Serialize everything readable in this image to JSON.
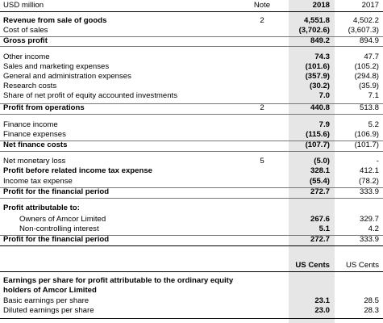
{
  "header": {
    "unit": "USD million",
    "note": "Note",
    "y2018": "2018",
    "y2017": "2017"
  },
  "sections": {
    "gross": [
      {
        "label": "Revenue from sale of goods",
        "note": "2",
        "v2018": "4,551.8",
        "v2017": "4,502.2",
        "bold": true
      },
      {
        "label": "Cost of sales",
        "note": "",
        "v2018": "(3,702.6)",
        "v2017": "(3,607.3)",
        "bold": false
      },
      {
        "label": "Gross profit",
        "note": "",
        "v2018": "849.2",
        "v2017": "894.9",
        "bold": true
      }
    ],
    "operations": [
      {
        "label": "Other income",
        "note": "",
        "v2018": "74.3",
        "v2017": "47.7"
      },
      {
        "label": "Sales and marketing expenses",
        "note": "",
        "v2018": "(101.6)",
        "v2017": "(105.2)"
      },
      {
        "label": "General and administration expenses",
        "note": "",
        "v2018": "(357.9)",
        "v2017": "(294.8)"
      },
      {
        "label": "Research costs",
        "note": "",
        "v2018": "(30.2)",
        "v2017": "(35.9)"
      },
      {
        "label": "Share of net profit of equity accounted investments",
        "note": "",
        "v2018": "7.0",
        "v2017": "7.1"
      },
      {
        "label": "Profit from operations",
        "note": "2",
        "v2018": "440.8",
        "v2017": "513.8",
        "bold": true
      }
    ],
    "finance": [
      {
        "label": "Finance income",
        "note": "",
        "v2018": "7.9",
        "v2017": "5.2"
      },
      {
        "label": "Finance expenses",
        "note": "",
        "v2018": "(115.6)",
        "v2017": "(106.9)"
      },
      {
        "label": "Net finance costs",
        "note": "",
        "v2018": "(107.7)",
        "v2017": "(101.7)",
        "bold": true
      }
    ],
    "tax": [
      {
        "label": "Net monetary loss",
        "note": "5",
        "v2018": "(5.0)",
        "v2017": "-"
      },
      {
        "label": "Profit before related income tax expense",
        "note": "",
        "v2018": "328.1",
        "v2017": "412.1",
        "bold": true
      },
      {
        "label": "Income tax expense",
        "note": "",
        "v2018": "(55.4)",
        "v2017": "(78.2)"
      },
      {
        "label": "Profit for the financial period",
        "note": "",
        "v2018": "272.7",
        "v2017": "333.9",
        "bold": true
      }
    ],
    "attributable": [
      {
        "label": "Profit attributable to:",
        "note": "",
        "v2018": "",
        "v2017": "",
        "bold": true
      },
      {
        "label": "Owners of Amcor Limited",
        "note": "",
        "v2018": "267.6",
        "v2017": "329.7",
        "indent": true
      },
      {
        "label": "Non-controlling interest",
        "note": "",
        "v2018": "5.1",
        "v2017": "4.2",
        "indent": true
      },
      {
        "label": "Profit for the financial period",
        "note": "",
        "v2018": "272.7",
        "v2017": "333.9",
        "bold": true
      }
    ]
  },
  "eps": {
    "header2018": "US Cents",
    "header2017": "US Cents",
    "title_line1": "Earnings per share for profit attributable to the ordinary equity",
    "title_line2": "holders of Amcor Limited",
    "rows": [
      {
        "label": "Basic earnings per share",
        "v2018": "23.1",
        "v2017": "28.5"
      },
      {
        "label": "Diluted earnings per share",
        "v2018": "23.0",
        "v2017": "28.3"
      }
    ]
  }
}
